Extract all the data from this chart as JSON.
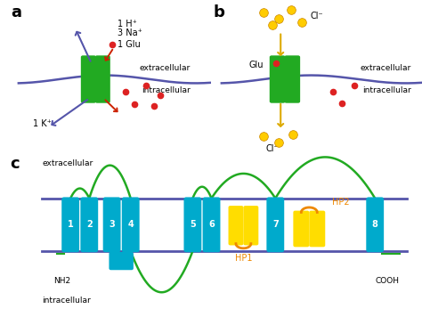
{
  "bg_color": "#ffffff",
  "membrane_color": "#5555aa",
  "transporter_color": "#22aa22",
  "red_dot_color": "#dd2222",
  "yellow_dot_color": "#ffcc00",
  "arrow_blue_color": "#5555aa",
  "arrow_red_color": "#cc2200",
  "arrow_yellow_color": "#ddaa00",
  "tmd_color": "#00aacc",
  "hp_color": "#ffdd00",
  "loop_color": "#22aa22",
  "orange_color": "#ee8800",
  "panel_a_label": "a",
  "panel_b_label": "b",
  "panel_c_label": "c",
  "extracellular": "extracellular",
  "intracellular": "intracellular",
  "text_1H": "1 H⁺",
  "text_3Na": "3 Na⁺",
  "text_1Glu": "1 Glu",
  "text_1K": "1 K⁺",
  "text_Cl_top": "Cl⁻",
  "text_Cl_bottom": "Cl⁻",
  "text_Glu_b": "Glu",
  "text_NH2": "NH2",
  "text_COOH": "COOH",
  "text_HP1": "HP1",
  "text_HP2": "HP2",
  "tmd_labels": [
    "1",
    "2",
    "3",
    "4",
    "5",
    "6",
    "7",
    "8"
  ]
}
